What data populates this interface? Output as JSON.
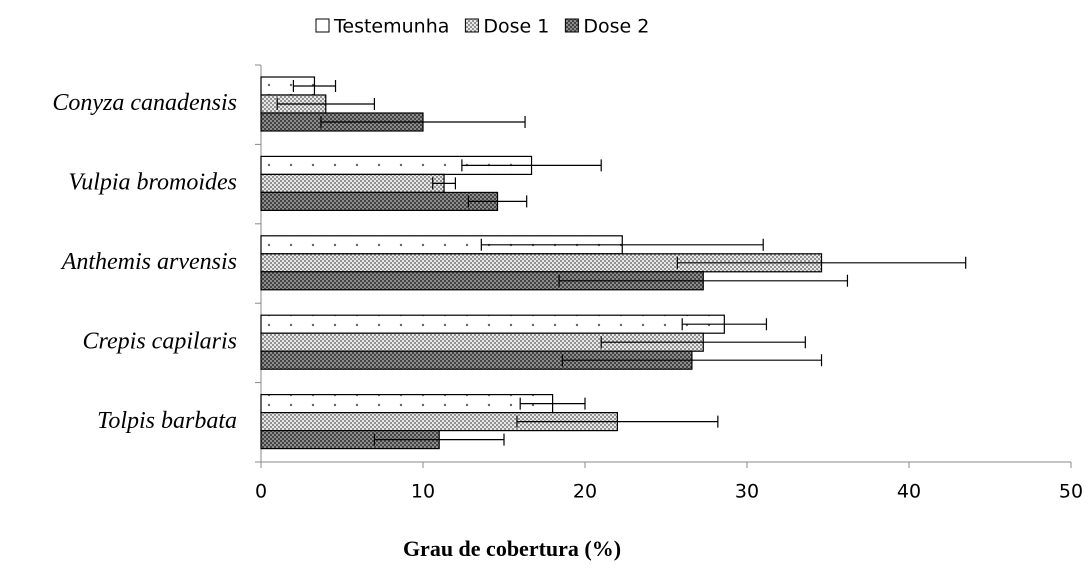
{
  "chart_data": {
    "type": "hbar",
    "xlabel": "Grau de cobertura (%)",
    "categories": [
      "Conyza canadensis",
      "Vulpia bromoides",
      "Anthemis arvensis",
      "Crepis capilaris",
      "Tolpis barbata"
    ],
    "series": [
      {
        "name": "Testemunha",
        "color": "#ffffff",
        "values": [
          3.3,
          16.7,
          22.3,
          28.6,
          18.0
        ],
        "errors": [
          1.3,
          4.3,
          8.7,
          2.6,
          2.0
        ]
      },
      {
        "name": "Dose 1",
        "color": "#d9d9d9",
        "values": [
          4.0,
          11.3,
          34.6,
          27.3,
          22.0
        ],
        "errors": [
          3.0,
          0.7,
          8.9,
          6.3,
          6.2
        ]
      },
      {
        "name": "Dose 2",
        "color": "#a6a6a6",
        "values": [
          10.0,
          14.6,
          27.3,
          26.6,
          11.0
        ],
        "errors": [
          6.3,
          1.8,
          8.9,
          8.0,
          4.0
        ]
      }
    ],
    "xlim": [
      0,
      50
    ],
    "xticks": [
      0,
      10,
      20,
      30,
      40,
      50
    ],
    "legend": "top"
  }
}
